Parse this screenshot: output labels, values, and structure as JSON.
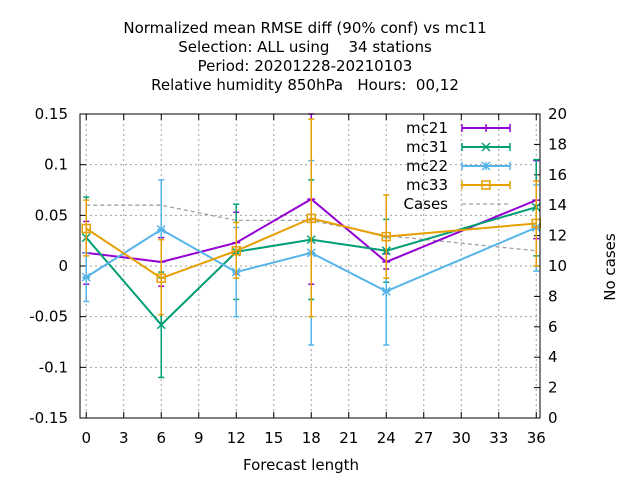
{
  "chart_data": {
    "type": "line",
    "title_lines": [
      "Normalized mean RMSE diff (90% conf) vs mc11",
      "Selection: ALL using    34 stations",
      "Period: 20201228-20210103",
      "Relative humidity 850hPa   Hours:  00,12"
    ],
    "xlabel": "Forecast length",
    "ylabel": "",
    "y2label": "No cases",
    "xlim": [
      -0.5,
      36.3
    ],
    "ylim": [
      -0.15,
      0.15
    ],
    "y2lim": [
      0,
      20
    ],
    "xticks": [
      "0",
      "3",
      "6",
      "9",
      "12",
      "15",
      "18",
      "21",
      "24",
      "27",
      "30",
      "33",
      "36"
    ],
    "yticks": [
      "-0.15",
      "-0.1",
      "-0.05",
      "0",
      "0.05",
      "0.1",
      "0.15"
    ],
    "y2ticks": [
      "0",
      "2",
      "4",
      "6",
      "8",
      "10",
      "12",
      "14",
      "16",
      "18",
      "20"
    ],
    "grid": true,
    "legend_position": "top-right",
    "colors": {
      "mc21": "#9400d3",
      "mc31": "#009e73",
      "mc22": "#56b4e9",
      "mc33": "#e69f00",
      "cases": "#a0a0a0"
    },
    "series": [
      {
        "name": "mc21",
        "x": [
          0,
          6,
          12,
          18,
          24,
          36
        ],
        "y": [
          0.013,
          0.004,
          0.023,
          0.066,
          0.004,
          0.065
        ],
        "err_low": [
          -0.018,
          -0.02,
          -0.008,
          -0.018,
          -0.003,
          0.027
        ],
        "err_high": [
          0.044,
          0.028,
          0.053,
          0.15,
          0.012,
          0.104
        ]
      },
      {
        "name": "mc31",
        "x": [
          0,
          6,
          12,
          18,
          24,
          36
        ],
        "y": [
          0.028,
          -0.058,
          0.014,
          0.026,
          0.015,
          0.058
        ],
        "err_low": [
          -0.012,
          -0.11,
          -0.033,
          -0.033,
          -0.016,
          0.01
        ],
        "err_high": [
          0.068,
          -0.006,
          0.061,
          0.085,
          0.046,
          0.105
        ]
      },
      {
        "name": "mc22",
        "x": [
          0,
          6,
          12,
          18,
          24,
          36
        ],
        "y": [
          -0.011,
          0.036,
          -0.006,
          0.013,
          -0.025,
          0.038
        ],
        "err_low": [
          -0.035,
          -0.012,
          -0.05,
          -0.078,
          -0.078,
          -0.005
        ],
        "err_high": [
          0.013,
          0.085,
          0.038,
          0.104,
          0.028,
          0.08
        ]
      },
      {
        "name": "mc33",
        "x": [
          0,
          6,
          12,
          18,
          24,
          36
        ],
        "y": [
          0.037,
          -0.012,
          0.015,
          0.047,
          0.029,
          0.042
        ],
        "err_low": [
          0.01,
          -0.048,
          -0.012,
          -0.05,
          -0.012,
          0.0
        ],
        "err_high": [
          0.065,
          0.026,
          0.043,
          0.145,
          0.07,
          0.084
        ]
      },
      {
        "name": "Cases",
        "axis": "y2",
        "x": [
          0,
          6,
          12,
          18,
          24,
          36
        ],
        "y": [
          14,
          14,
          13,
          13,
          12,
          11
        ]
      }
    ]
  }
}
